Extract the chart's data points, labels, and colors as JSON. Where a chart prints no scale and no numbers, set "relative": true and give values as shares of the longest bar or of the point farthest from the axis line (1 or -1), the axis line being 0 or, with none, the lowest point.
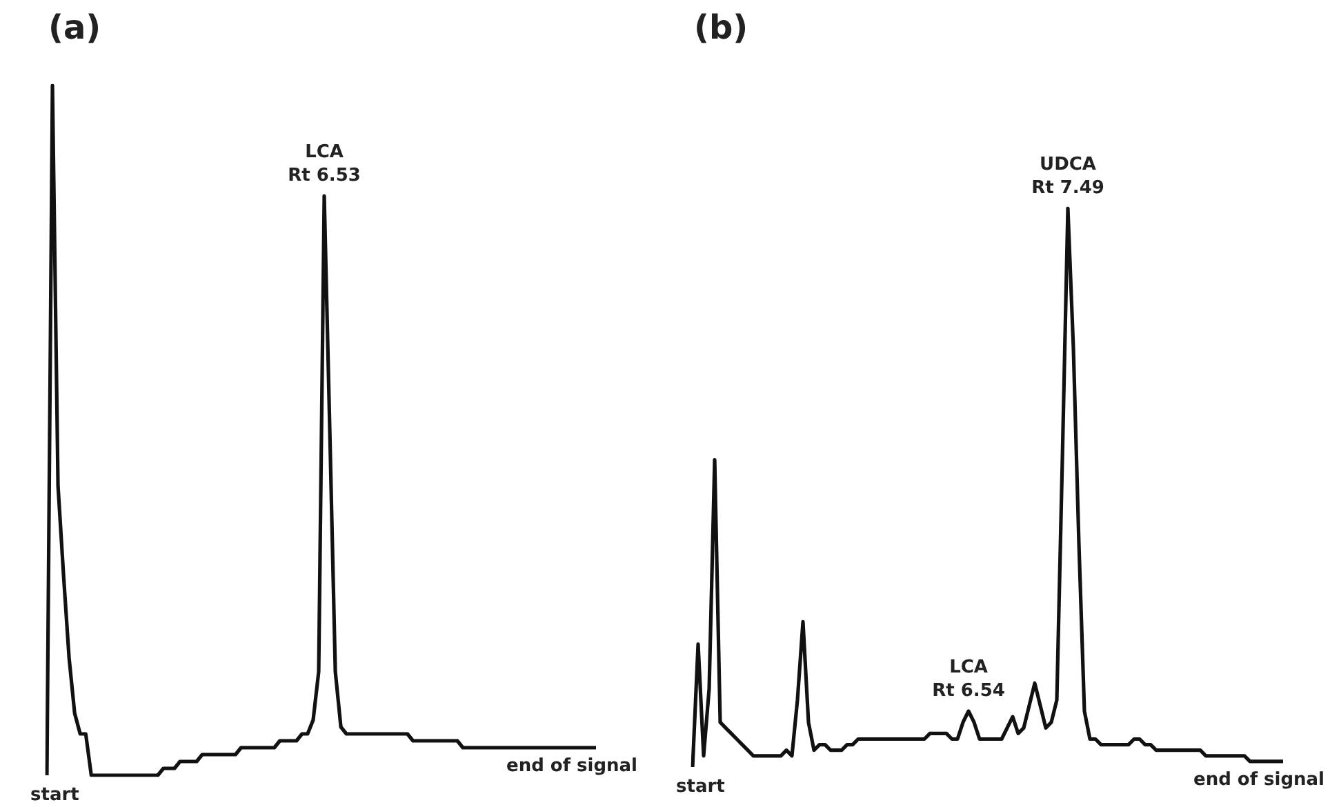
{
  "chart_data": [
    {
      "type": "line",
      "title": "(a)",
      "relative": true,
      "legend": false,
      "marker": "none",
      "categories": [
        null,
        null,
        null,
        null,
        null,
        null,
        null,
        null,
        null,
        null,
        null,
        null,
        null,
        null,
        null,
        null,
        null,
        null,
        null,
        null,
        null,
        null,
        null,
        null,
        null,
        null,
        null,
        null,
        null,
        null,
        null,
        null,
        null,
        null,
        null,
        null,
        null,
        null,
        null,
        null,
        null,
        null,
        null,
        null,
        null,
        null,
        null,
        null,
        null,
        null,
        null,
        null,
        null,
        null,
        null,
        null,
        null,
        null,
        null,
        null,
        null,
        null,
        null,
        null,
        null,
        null,
        null,
        null,
        null,
        null,
        null,
        null,
        null,
        null,
        null,
        null,
        null,
        null,
        null,
        null,
        null,
        null,
        null,
        null,
        null,
        null,
        null,
        null,
        null,
        null,
        null,
        null,
        null,
        null,
        null,
        null,
        null,
        null,
        null,
        null
      ],
      "series": [
        {
          "color": "#111111",
          "values": [
            0,
            1,
            0.42,
            0.29,
            0.17,
            0.09,
            0.06,
            0.06,
            0,
            0,
            0,
            0,
            0,
            0,
            0,
            0,
            0,
            0,
            0,
            0,
            0,
            0.01,
            0.01,
            0.01,
            0.02,
            0.02,
            0.02,
            0.02,
            0.03,
            0.03,
            0.03,
            0.03,
            0.03,
            0.03,
            0.03,
            0.04,
            0.04,
            0.04,
            0.04,
            0.04,
            0.04,
            0.04,
            0.05,
            0.05,
            0.05,
            0.05,
            0.06,
            0.06,
            0.08,
            0.15,
            0.84,
            0.5,
            0.15,
            0.07,
            0.06,
            0.06,
            0.06,
            0.06,
            0.06,
            0.06,
            0.06,
            0.06,
            0.06,
            0.06,
            0.06,
            0.06,
            0.05,
            0.05,
            0.05,
            0.05,
            0.05,
            0.05,
            0.05,
            0.05,
            0.05,
            0.04,
            0.04,
            0.04,
            0.04,
            0.04,
            0.04,
            0.04,
            0.04,
            0.04,
            0.04,
            0.04,
            0.04,
            0.04,
            0.04,
            0.04,
            0.04,
            0.04,
            0.04,
            0.04,
            0.04,
            0.04,
            0.04,
            0.04,
            0.04,
            0.04
          ]
        }
      ],
      "annotations": [
        {
          "text": "LCA\nRt 6.53",
          "y": 0.84
        },
        "start",
        "end of signal"
      ]
    },
    {
      "type": "line",
      "title": "(b)",
      "relative": true,
      "legend": false,
      "marker": "none",
      "categories": [
        null,
        null,
        null,
        null,
        null,
        null,
        null,
        null,
        null,
        null,
        null,
        null,
        null,
        null,
        null,
        null,
        null,
        null,
        null,
        null,
        null,
        null,
        null,
        null,
        null,
        null,
        null,
        null,
        null,
        null,
        null,
        null,
        null,
        null,
        null,
        null,
        null,
        null,
        null,
        null,
        null,
        null,
        null,
        null,
        null,
        null,
        null,
        null,
        null,
        null,
        null,
        null,
        null,
        null,
        null,
        null,
        null,
        null,
        null,
        null,
        null,
        null,
        null,
        null,
        null,
        null,
        null,
        null,
        null,
        null,
        null,
        null,
        null,
        null,
        null,
        null,
        null,
        null,
        null,
        null,
        null,
        null,
        null,
        null,
        null,
        null,
        null,
        null,
        null,
        null,
        null,
        null,
        null,
        null,
        null,
        null,
        null,
        null,
        null,
        null,
        null,
        null,
        null,
        null,
        null,
        null,
        null,
        null
      ],
      "series": [
        {
          "color": "#111111",
          "values": [
            0,
            0.22,
            0.02,
            0.14,
            0.55,
            0.08,
            0.07,
            0.06,
            0.05,
            0.04,
            0.03,
            0.02,
            0.02,
            0.02,
            0.02,
            0.02,
            0.02,
            0.03,
            0.02,
            0.12,
            0.26,
            0.08,
            0.03,
            0.04,
            0.04,
            0.03,
            0.03,
            0.03,
            0.04,
            0.04,
            0.05,
            0.05,
            0.05,
            0.05,
            0.05,
            0.05,
            0.05,
            0.05,
            0.05,
            0.05,
            0.05,
            0.05,
            0.05,
            0.06,
            0.06,
            0.06,
            0.06,
            0.05,
            0.05,
            0.08,
            0.1,
            0.08,
            0.05,
            0.05,
            0.05,
            0.05,
            0.05,
            0.07,
            0.09,
            0.06,
            0.07,
            0.11,
            0.15,
            0.11,
            0.07,
            0.08,
            0.12,
            0.55,
            1,
            0.75,
            0.4,
            0.1,
            0.05,
            0.05,
            0.04,
            0.04,
            0.04,
            0.04,
            0.04,
            0.04,
            0.05,
            0.05,
            0.04,
            0.04,
            0.03,
            0.03,
            0.03,
            0.03,
            0.03,
            0.03,
            0.03,
            0.03,
            0.03,
            0.02,
            0.02,
            0.02,
            0.02,
            0.02,
            0.02,
            0.02,
            0.02,
            0.01,
            0.01,
            0.01,
            0.01,
            0.01,
            0.01,
            0.01
          ]
        }
      ],
      "annotations": [
        {
          "text": "LCA\nRt 6.54",
          "y": 0.1
        },
        {
          "text": "UDCA\nRt 7.49",
          "y": 1
        },
        "start",
        "end of signal"
      ]
    }
  ]
}
